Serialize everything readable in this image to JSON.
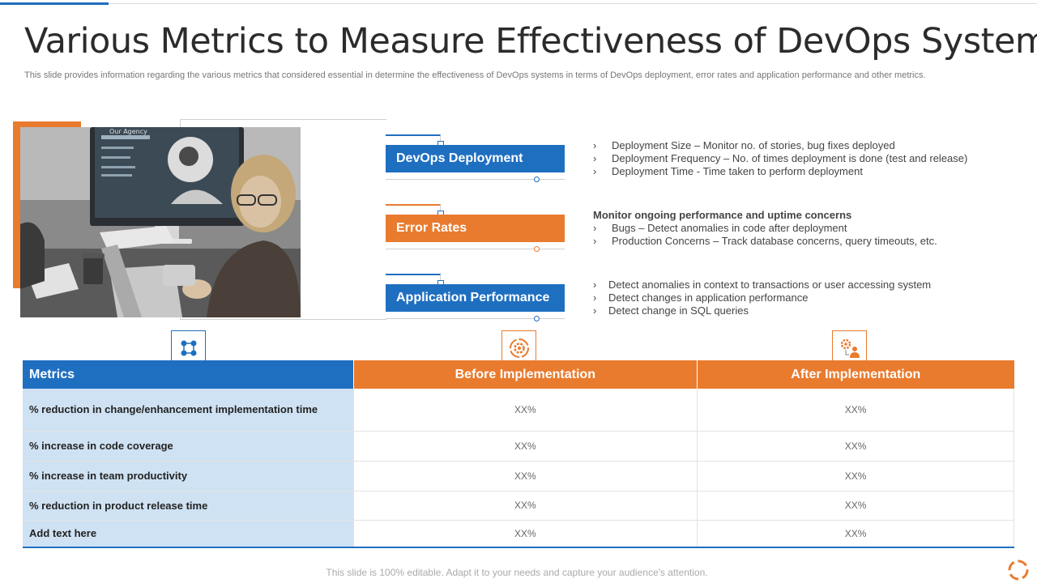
{
  "title": "Various Metrics to Measure Effectiveness of DevOps System",
  "subtitle": "This slide provides information regarding the various metrics that considered essential in determine the effectiveness of DevOps systems in terms of DevOps deployment, error rates and application performance and other metrics.",
  "colors": {
    "blue": "#1f6fc1",
    "orange": "#e97b2e",
    "light_blue": "#cfe2f3"
  },
  "photo": {
    "screen_text": "Our Agency"
  },
  "metrics": [
    {
      "label": "DevOps Deployment",
      "heading": "",
      "points": [
        "Deployment Size – Monitor no. of stories, bug fixes deployed",
        "Deployment Frequency  – No. of times deployment is done (test and release)",
        "Deployment Time  - Time taken to perform deployment"
      ]
    },
    {
      "label": "Error Rates",
      "heading": "Monitor ongoing performance and uptime concerns",
      "points": [
        "Bugs – Detect anomalies in code after deployment",
        "Production Concerns – Track database concerns, query timeouts, etc."
      ]
    },
    {
      "label": "Application Performance",
      "heading": "",
      "points": [
        "Detect anomalies in context to transactions or user accessing system",
        "Detect changes in application performance",
        "Detect change in SQL queries"
      ]
    }
  ],
  "table": {
    "headers": [
      "Metrics",
      "Before Implementation",
      "After Implementation"
    ],
    "icons": [
      "network-icon",
      "gear-cycle-icon",
      "settings-person-icon"
    ],
    "rows": [
      [
        "% reduction in change/enhancement implementation time",
        "XX%",
        "XX%"
      ],
      [
        "% increase in code coverage",
        "XX%",
        "XX%"
      ],
      [
        "% increase in team productivity",
        "XX%",
        "XX%"
      ],
      [
        "% reduction in product release time",
        "XX%",
        "XX%"
      ],
      [
        "Add text here",
        "XX%",
        "XX%"
      ]
    ]
  },
  "footer": "This slide is 100% editable. Adapt it to your needs and capture your audience's attention.",
  "chevron": "›"
}
